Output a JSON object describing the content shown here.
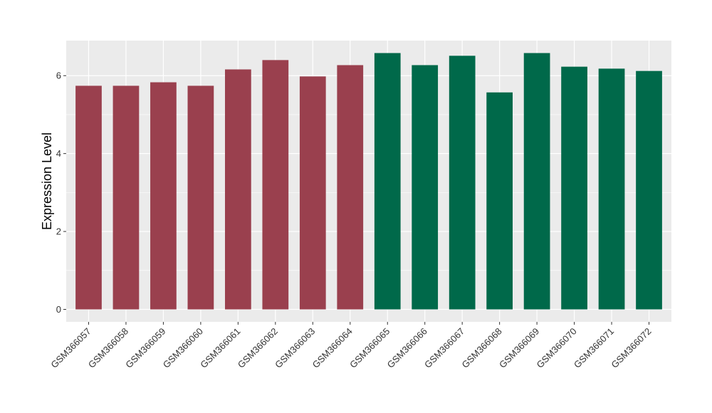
{
  "chart_data": {
    "type": "bar",
    "title": "",
    "xlabel": "",
    "ylabel": "Expression Level",
    "categories": [
      "GSM366057",
      "GSM366058",
      "GSM366059",
      "GSM366060",
      "GSM366061",
      "GSM366062",
      "GSM366063",
      "GSM366064",
      "GSM366065",
      "GSM366066",
      "GSM366067",
      "GSM366068",
      "GSM366069",
      "GSM366070",
      "GSM366071",
      "GSM366072"
    ],
    "values": [
      5.74,
      5.74,
      5.83,
      5.74,
      6.16,
      6.4,
      5.98,
      6.27,
      6.58,
      6.27,
      6.51,
      5.57,
      6.58,
      6.23,
      6.18,
      6.12
    ],
    "group_colors": [
      "#9a404e",
      "#9a404e",
      "#9a404e",
      "#9a404e",
      "#9a404e",
      "#9a404e",
      "#9a404e",
      "#9a404e",
      "#00694a",
      "#00694a",
      "#00694a",
      "#00694a",
      "#00694a",
      "#00694a",
      "#00694a",
      "#00694a"
    ],
    "yticks": [
      0,
      2,
      4,
      6
    ],
    "ylim": [
      -0.32,
      6.9
    ],
    "grid": true,
    "legend": "none",
    "panel_background": "#ebebeb",
    "gridline_color": "#ffffff"
  }
}
